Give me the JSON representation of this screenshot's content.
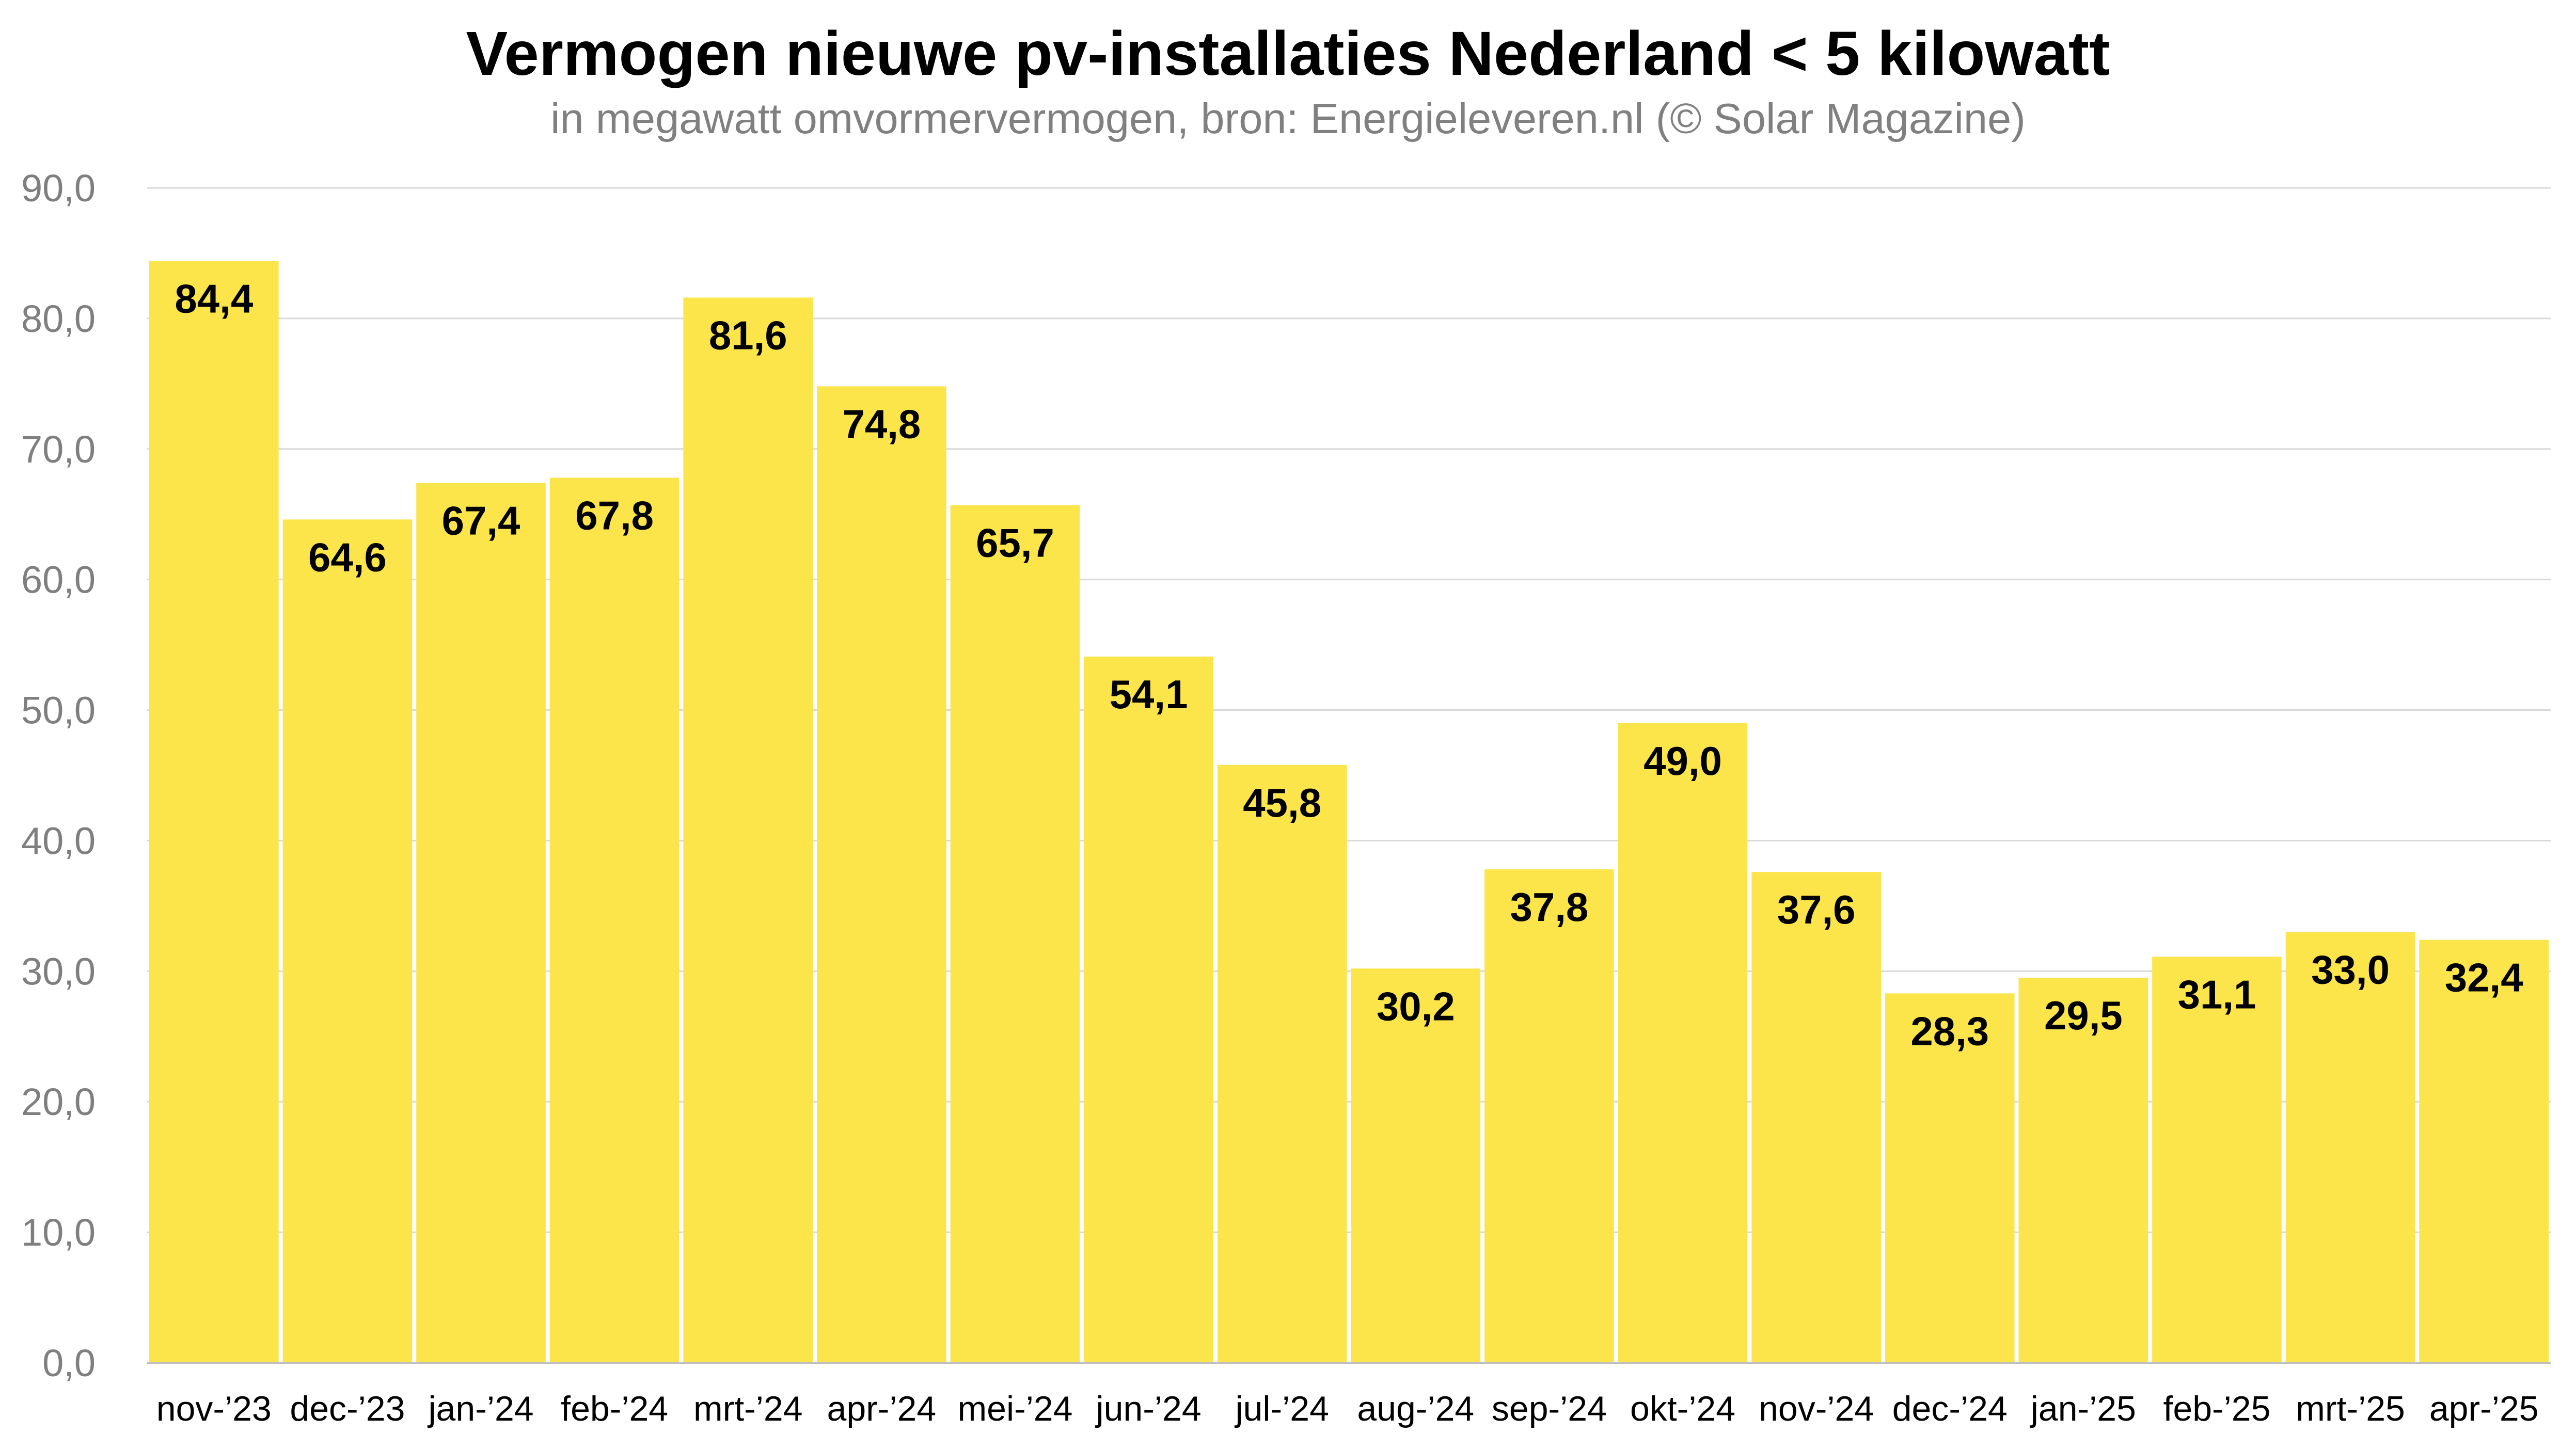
{
  "chart_data": {
    "type": "bar",
    "title": "Vermogen nieuwe pv-installaties Nederland < 5 kilowatt",
    "subtitle": "in megawatt omvormervermogen, bron: Energieleveren.nl (© Solar Magazine)",
    "xlabel": "",
    "ylabel": "",
    "ylim": [
      0,
      90
    ],
    "ytick_values": [
      0,
      10,
      20,
      30,
      40,
      50,
      60,
      70,
      80,
      90
    ],
    "ytick_labels": [
      "0,0",
      "10,0",
      "20,0",
      "30,0",
      "40,0",
      "50,0",
      "60,0",
      "70,0",
      "80,0",
      "90,0"
    ],
    "grid": true,
    "legend": "none",
    "categories": [
      "nov-’23",
      "dec-’23",
      "jan-’24",
      "feb-’24",
      "mrt-’24",
      "apr-’24",
      "mei-’24",
      "jun-’24",
      "jul-’24",
      "aug-’24",
      "sep-’24",
      "okt-’24",
      "nov-’24",
      "dec-’24",
      "jan-’25",
      "feb-’25",
      "mrt-’25",
      "apr-’25"
    ],
    "values": [
      84.4,
      64.6,
      67.4,
      67.8,
      81.6,
      74.8,
      65.7,
      54.1,
      45.8,
      30.2,
      37.8,
      49.0,
      37.6,
      28.3,
      29.5,
      31.1,
      33.0,
      32.4
    ],
    "value_labels": [
      "84,4",
      "64,6",
      "67,4",
      "67,8",
      "81,6",
      "74,8",
      "65,7",
      "54,1",
      "45,8",
      "30,2",
      "37,8",
      "49,0",
      "37,6",
      "28,3",
      "29,5",
      "31,1",
      "33,0",
      "32,4"
    ],
    "colors": {
      "bar": "#fce54a",
      "gridline": "#d9d9d9",
      "axis": "#bfbfbf"
    }
  }
}
